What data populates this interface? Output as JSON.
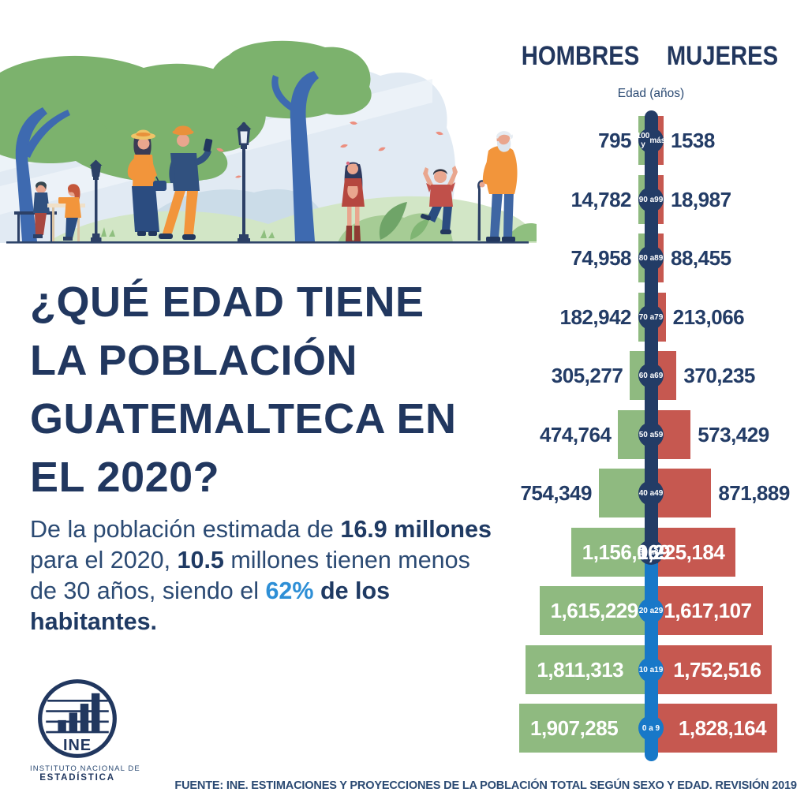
{
  "title": {
    "lines": [
      "¿QUÉ EDAD TIENE",
      "LA POBLACIÓN",
      "GUATEMALTECA EN",
      "EL 2020?"
    ]
  },
  "intro": {
    "segments": [
      {
        "t": "De la población estimada de ",
        "s": "n"
      },
      {
        "t": "16.9 millones",
        "s": "b"
      },
      {
        "t": " para el 2020, ",
        "s": "n"
      },
      {
        "t": "10.5",
        "s": "b"
      },
      {
        "t": " millones tienen menos de 30 años, siendo el ",
        "s": "n"
      },
      {
        "t": "62%",
        "s": "bb"
      },
      {
        "t": " de los habitantes.",
        "s": "b"
      }
    ]
  },
  "pyramid": {
    "header_left": "HOMBRES",
    "header_right": "MUJERES",
    "axis_label": "Edad (años)",
    "rows": [
      {
        "age": "100 y más",
        "badge": [
          "100 y",
          "más"
        ],
        "men": "795",
        "women": "1538",
        "highlight": false
      },
      {
        "age": "90 a 99",
        "badge": [
          "90 a",
          "99"
        ],
        "men": "14,782",
        "women": "18,987",
        "highlight": false
      },
      {
        "age": "80 a 89",
        "badge": [
          "80 a",
          "89"
        ],
        "men": "74,958",
        "women": "88,455",
        "highlight": false
      },
      {
        "age": "70 a 79",
        "badge": [
          "70 a",
          "79"
        ],
        "men": "182,942",
        "women": "213,066",
        "highlight": false
      },
      {
        "age": "60 a 69",
        "badge": [
          "60 a",
          "69"
        ],
        "men": "305,277",
        "women": "370,235",
        "highlight": false
      },
      {
        "age": "50 a 59",
        "badge": [
          "50 a",
          "59"
        ],
        "men": "474,764",
        "women": "573,429",
        "highlight": false
      },
      {
        "age": "40 a 49",
        "badge": [
          "40 a",
          "49"
        ],
        "men": "754,349",
        "women": "871,889",
        "highlight": false
      },
      {
        "age": "30 a 39",
        "badge": [
          "30 a",
          "39"
        ],
        "men": "1,156,069",
        "women": "1,225,184",
        "highlight": false
      },
      {
        "age": "20 a 29",
        "badge": [
          "20 a",
          "29"
        ],
        "men": "1,615,229",
        "women": "1,617,107",
        "highlight": true
      },
      {
        "age": "10 a 19",
        "badge": [
          "10 a",
          "19"
        ],
        "men": "1,811,313",
        "women": "1,752,516",
        "highlight": true
      },
      {
        "age": "0 a 9",
        "badge": [
          "0 a 9"
        ],
        "men": "1,907,285",
        "women": "1,828,164",
        "highlight": true
      }
    ]
  },
  "logo": {
    "acronym": "INE",
    "org_line1": "INSTITUTO NACIONAL DE",
    "org_line2": "ESTADÍSTICA"
  },
  "source": "FUENTE: INE.  ESTIMACIONES Y PROYECCIONES DE LA POBLACIÓN TOTAL SEGÚN SEXO Y EDAD. REVISIÓN 2019",
  "colors": {
    "navy": "#233C66",
    "title_navy": "#21375F",
    "men_green": "#8FBA80",
    "women_red": "#C65850",
    "under30_blue": "#1878C8",
    "accent_text_blue": "#2E8FD6"
  },
  "chart_data": {
    "type": "bar",
    "subtype": "population_pyramid",
    "title": "¿Qué edad tiene la población guatemalteca en el 2020?",
    "axis_label": "Edad (años)",
    "categories": [
      "100 y más",
      "90 a 99",
      "80 a 89",
      "70 a 79",
      "60 a 69",
      "50 a 59",
      "40 a 49",
      "30 a 39",
      "20 a 29",
      "10 a 19",
      "0 a 9"
    ],
    "series": [
      {
        "name": "HOMBRES",
        "color": "#8FBA80",
        "values": [
          795,
          14782,
          74958,
          182942,
          305277,
          474764,
          754349,
          1156069,
          1615229,
          1811313,
          1907285
        ]
      },
      {
        "name": "MUJERES",
        "color": "#C65850",
        "values": [
          1538,
          18987,
          88455,
          213066,
          370235,
          573429,
          871889,
          1225184,
          1617107,
          1752516,
          1828164
        ]
      }
    ],
    "legend_position": "top",
    "highlighted_categories_under_30": [
      "20 a 29",
      "10 a 19",
      "0 a 9"
    ],
    "source": "FUENTE: INE.  ESTIMACIONES Y PROYECCIONES DE LA POBLACIÓN TOTAL SEGÚN SEXO Y EDAD. REVISIÓN 2019"
  }
}
